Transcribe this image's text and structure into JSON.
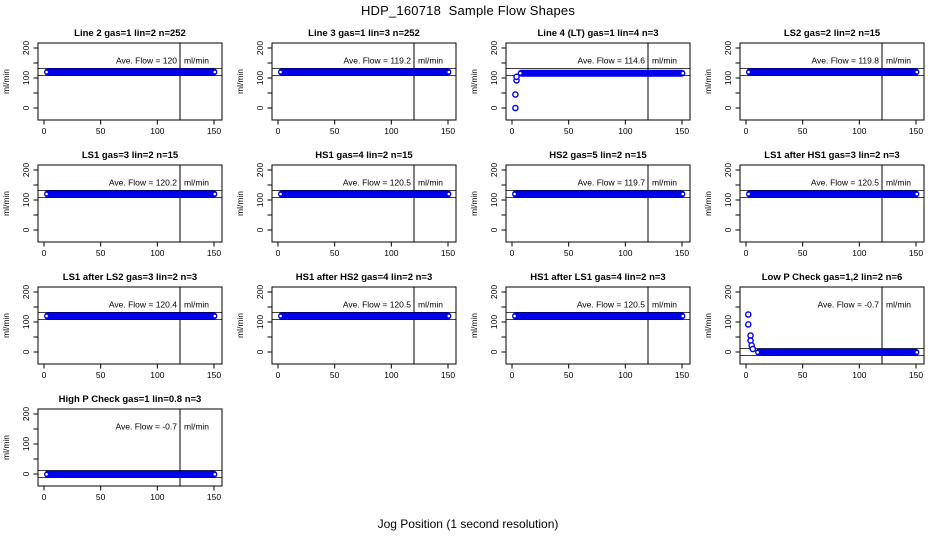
{
  "figure": {
    "title": "HDP_160718  Sample Flow Shapes",
    "xlabel": "Jog Position (1 second resolution)",
    "ylabel": "ml/min"
  },
  "chart_data": {
    "type": "scatter",
    "title": "HDP_160718  Sample Flow Shapes",
    "xlabel": "Jog Position (1 second resolution)",
    "ylabel": "ml/min",
    "point_color": "#0000EE",
    "axis_color": "#000000",
    "ave_label": "Ave. Flow = ",
    "unit": "ml/min",
    "layout": {
      "rows": 4,
      "cols": 4,
      "xlim": [
        -5.5,
        157
      ],
      "ylim": [
        -40,
        216
      ],
      "xticks": [
        0,
        50,
        100,
        150
      ],
      "yticks": [
        0,
        50,
        100,
        150,
        200
      ],
      "ytick_labels": [
        "0",
        "",
        "100",
        "",
        "200"
      ],
      "vline_x": 120,
      "band_x_end": 153,
      "grid": false,
      "legend": "none"
    },
    "panels": [
      {
        "slug": "line-2",
        "title": "Line 2 gas=1 lin=2 n=252",
        "ave_flow": "120",
        "band_center": 120,
        "band_x_start": 0,
        "limits": [
          108,
          132
        ],
        "startup_points": []
      },
      {
        "slug": "line-3",
        "title": "Line 3 gas=1 lin=3 n=252",
        "ave_flow": "119.2",
        "band_center": 120,
        "band_x_start": 0,
        "limits": [
          108,
          132
        ],
        "startup_points": []
      },
      {
        "slug": "line-4-lt",
        "title": "Line 4 (LT) gas=1 lin=4 n=3",
        "ave_flow": "114.6",
        "band_center": 116,
        "band_x_start": 5,
        "limits": [
          108,
          132
        ],
        "startup_points": [
          [
            3,
            0
          ],
          [
            3,
            45
          ],
          [
            4,
            92
          ],
          [
            4,
            104
          ]
        ]
      },
      {
        "slug": "ls2",
        "title": "LS2 gas=2 lin=2 n=15",
        "ave_flow": "119.8",
        "band_center": 120,
        "band_x_start": 0,
        "limits": [
          108,
          132
        ],
        "startup_points": []
      },
      {
        "slug": "ls1",
        "title": "LS1 gas=3 lin=2 n=15",
        "ave_flow": "120.2",
        "band_center": 120,
        "band_x_start": 0,
        "limits": [
          108,
          132
        ],
        "startup_points": []
      },
      {
        "slug": "hs1",
        "title": "HS1 gas=4 lin=2 n=15",
        "ave_flow": "120.5",
        "band_center": 120,
        "band_x_start": 0,
        "limits": [
          108,
          132
        ],
        "startup_points": []
      },
      {
        "slug": "hs2",
        "title": "HS2 gas=5 lin=2 n=15",
        "ave_flow": "119.7",
        "band_center": 120,
        "band_x_start": 0,
        "limits": [
          108,
          132
        ],
        "startup_points": []
      },
      {
        "slug": "ls1-after-hs1",
        "title": "LS1 after HS1 gas=3 lin=2 n=3",
        "ave_flow": "120.5",
        "band_center": 120,
        "band_x_start": 0,
        "limits": [
          108,
          132
        ],
        "startup_points": []
      },
      {
        "slug": "ls1-after-ls2",
        "title": "LS1 after LS2 gas=3 lin=2 n=3",
        "ave_flow": "120.4",
        "band_center": 120,
        "band_x_start": 0,
        "limits": [
          108,
          132
        ],
        "startup_points": []
      },
      {
        "slug": "hs1-after-hs2",
        "title": "HS1 after HS2 gas=4 lin=2 n=3",
        "ave_flow": "120.5",
        "band_center": 120,
        "band_x_start": 0,
        "limits": [
          108,
          132
        ],
        "startup_points": []
      },
      {
        "slug": "hs1-after-ls1",
        "title": "HS1 after LS1 gas=4 lin=2 n=3",
        "ave_flow": "120.5",
        "band_center": 120,
        "band_x_start": 0,
        "limits": [
          108,
          132
        ],
        "startup_points": []
      },
      {
        "slug": "low-p-check",
        "title": "Low P Check gas=1,2 lin=2 n=6",
        "ave_flow": "-0.7",
        "band_center": -1,
        "band_x_start": 8,
        "limits": [
          -12,
          12
        ],
        "startup_points": [
          [
            2,
            125
          ],
          [
            2,
            92
          ],
          [
            4,
            55
          ],
          [
            4,
            38
          ],
          [
            5,
            22
          ],
          [
            6,
            10
          ]
        ]
      },
      {
        "slug": "high-p-check",
        "title": "High P Check gas=1 lin=0.8 n=3",
        "ave_flow": "-0.7",
        "band_center": -1,
        "band_x_start": 0,
        "limits": [
          -12,
          12
        ],
        "startup_points": []
      }
    ]
  }
}
